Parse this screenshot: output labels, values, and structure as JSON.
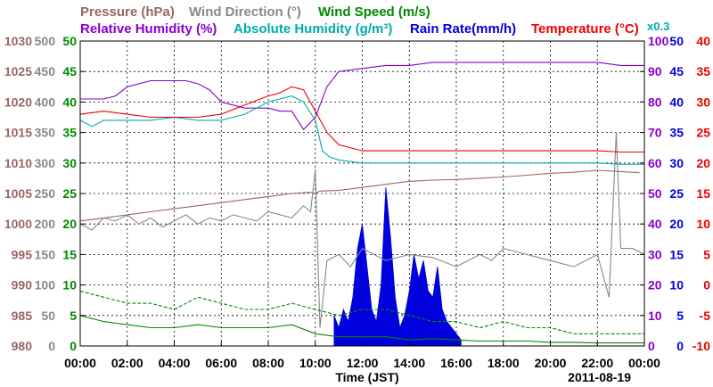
{
  "chart_data": {
    "type": "line",
    "date_label": "2011-08-19",
    "xlabel": "Time (JST)",
    "x_ticks": [
      "00:00",
      "02:00",
      "04:00",
      "06:00",
      "08:00",
      "10:00",
      "12:00",
      "14:00",
      "16:00",
      "18:00",
      "20:00",
      "22:00",
      "00:00"
    ],
    "xlim": [
      0,
      24
    ],
    "grid": true,
    "legend_placement": "top",
    "legend": [
      {
        "key": "pressure",
        "label": "Pressure (hPa)",
        "color": "#996666"
      },
      {
        "key": "wind_direction",
        "label": "Wind Direction (°)",
        "color": "#888888"
      },
      {
        "key": "wind_speed",
        "label": "Wind Speed (m/s)",
        "color": "#008800"
      },
      {
        "key": "relative_humidity",
        "label": "Relative Humidity (%)",
        "color": "#8800cc"
      },
      {
        "key": "absolute_humidity",
        "label": "Absolute Humidity (g/m³)",
        "color": "#00aaaa"
      },
      {
        "key": "rain_rate",
        "label": "Rain Rate(mm/h)",
        "color": "#0000dd"
      },
      {
        "key": "temperature",
        "label": "Temperature (°C)",
        "color": "#ee0000"
      }
    ],
    "rain_scale_note": "x0.3",
    "axes": {
      "pressure": {
        "ticks": [
          "1030",
          "1025",
          "1020",
          "1015",
          "1010",
          "1005",
          "1000",
          "995",
          "990",
          "985",
          "980"
        ],
        "range": [
          980,
          1030
        ],
        "color": "#996666"
      },
      "wind_direction": {
        "ticks": [
          "500",
          "450",
          "400",
          "350",
          "300",
          "250",
          "200",
          "150",
          "100",
          "50",
          "0"
        ],
        "range": [
          0,
          500
        ],
        "color": "#888888"
      },
      "wind_speed": {
        "ticks": [
          "50",
          "45",
          "40",
          "35",
          "30",
          "25",
          "20",
          "15",
          "10",
          "5",
          "0"
        ],
        "range": [
          0,
          50
        ],
        "color": "#008800"
      },
      "relative_humidity": {
        "ticks": [
          "100",
          "90",
          "80",
          "70",
          "60",
          "50",
          "40",
          "30",
          "20",
          "10",
          "0"
        ],
        "range": [
          0,
          100
        ],
        "color": "#8800cc"
      },
      "rain_rate": {
        "ticks": [
          "50",
          "45",
          "40",
          "35",
          "30",
          "25",
          "20",
          "15",
          "10",
          "5",
          "0"
        ],
        "range": [
          0,
          50
        ],
        "color": "#0000dd"
      },
      "temperature": {
        "ticks": [
          "40",
          "35",
          "30",
          "25",
          "20",
          "15",
          "10",
          "5",
          "0",
          "-5",
          "-10"
        ],
        "range": [
          -10,
          40
        ],
        "color": "#ee0000"
      }
    },
    "series": [
      {
        "key": "pressure",
        "unit_axis": "pressure",
        "x": [
          0,
          1,
          2,
          3,
          4,
          5,
          6,
          7,
          8,
          9,
          9.8,
          10.0,
          10.2,
          11,
          12,
          13,
          14,
          15,
          16,
          17,
          18,
          19,
          20,
          21,
          22,
          23,
          23.8
        ],
        "y": [
          1000.5,
          1001,
          1001.5,
          1002,
          1002.5,
          1003,
          1003.5,
          1004,
          1004.5,
          1005,
          1005.2,
          1005,
          1005.4,
          1005.5,
          1006,
          1006.5,
          1007,
          1007.2,
          1007.3,
          1007.5,
          1007.7,
          1008,
          1008.3,
          1008.5,
          1008.8,
          1008.6,
          1008.4
        ]
      },
      {
        "key": "wind_direction",
        "unit_axis": "wind_direction",
        "x": [
          0,
          0.5,
          1,
          1.5,
          2,
          2.5,
          3,
          3.5,
          4,
          4.5,
          5,
          5.5,
          6,
          6.5,
          7,
          7.5,
          8,
          8.5,
          9,
          9.5,
          9.8,
          10.0,
          10.2,
          10.5,
          11,
          11.5,
          12,
          13,
          14,
          15,
          16,
          17,
          17.5,
          18,
          19,
          20,
          21,
          22,
          22.5,
          22.8,
          23,
          23.5,
          24
        ],
        "y": [
          200,
          190,
          210,
          205,
          215,
          200,
          210,
          195,
          205,
          215,
          200,
          210,
          205,
          215,
          210,
          205,
          220,
          215,
          210,
          230,
          220,
          290,
          30,
          140,
          150,
          130,
          160,
          140,
          150,
          145,
          130,
          150,
          140,
          160,
          150,
          140,
          130,
          150,
          80,
          350,
          160,
          160,
          150
        ]
      },
      {
        "key": "wind_speed_max",
        "unit_axis": "wind_speed",
        "dashed": true,
        "x": [
          0,
          1,
          2,
          3,
          4,
          5,
          6,
          7,
          8,
          9,
          10,
          11,
          12,
          13,
          14,
          15,
          16,
          17,
          18,
          19,
          20,
          21,
          22,
          23,
          24
        ],
        "y": [
          9,
          8,
          7,
          7,
          6,
          8,
          7,
          6,
          6,
          7,
          6,
          5,
          6,
          6,
          5,
          4,
          4,
          3,
          4,
          3,
          3,
          2,
          2,
          2,
          2
        ]
      },
      {
        "key": "wind_speed",
        "unit_axis": "wind_speed",
        "x": [
          0,
          1,
          2,
          3,
          4,
          5,
          6,
          7,
          8,
          9,
          10,
          11,
          12,
          13,
          14,
          15,
          16,
          17,
          18,
          19,
          20,
          21,
          22,
          23,
          24
        ],
        "y": [
          5,
          4,
          3.5,
          3,
          3,
          3.5,
          3,
          3,
          3,
          3.5,
          2,
          1.5,
          1.5,
          1.5,
          1,
          1.2,
          1,
          0.8,
          0.8,
          0.8,
          0.6,
          0.6,
          0.5,
          0.5,
          0.5
        ]
      },
      {
        "key": "relative_humidity",
        "unit_axis": "relative_humidity",
        "x": [
          0,
          0.5,
          1,
          1.5,
          2,
          3,
          4,
          4.5,
          5,
          5.5,
          6,
          7,
          8,
          8.5,
          9,
          9.5,
          10,
          10.5,
          11,
          12,
          13,
          14,
          15,
          16,
          17,
          18,
          19,
          20,
          21,
          22,
          23,
          24
        ],
        "y": [
          81,
          81,
          81,
          82,
          85,
          87,
          87,
          87,
          86,
          84,
          80,
          78,
          78,
          77,
          77,
          71,
          75,
          85,
          90,
          91,
          92,
          92,
          93,
          93,
          93,
          93,
          93,
          93,
          93,
          93,
          92,
          92
        ]
      },
      {
        "key": "absolute_humidity",
        "unit_axis": "temperature",
        "x": [
          0,
          0.5,
          1,
          2,
          3,
          4,
          5,
          6,
          7,
          8,
          9,
          9.5,
          10,
          10.3,
          10.6,
          11,
          12,
          13,
          14,
          15,
          16,
          17,
          18,
          19,
          20,
          21,
          22,
          23,
          24
        ],
        "y": [
          27,
          26,
          27,
          27,
          27,
          27.5,
          27,
          27,
          28,
          30,
          31,
          30,
          27,
          22,
          21,
          20.5,
          20,
          20,
          20,
          20,
          20,
          20,
          20,
          20,
          20,
          20,
          20,
          19.8,
          19.8
        ]
      },
      {
        "key": "temperature",
        "unit_axis": "temperature",
        "x": [
          0,
          1,
          2,
          3,
          4,
          5,
          6,
          7,
          8,
          8.5,
          9,
          9.5,
          10,
          10.5,
          11,
          12,
          13,
          14,
          15,
          16,
          17,
          18,
          19,
          20,
          21,
          22,
          23,
          24
        ],
        "y": [
          28,
          28.5,
          28,
          27.5,
          27.5,
          27.5,
          28,
          29.5,
          31,
          31.5,
          32.5,
          32,
          28.5,
          25,
          23,
          22,
          22,
          22,
          22,
          22,
          22,
          22,
          22,
          22,
          22,
          22,
          21.8,
          21.8
        ]
      }
    ],
    "rain_bars": {
      "unit_axis": "wind_speed",
      "x": [
        10.8,
        11.0,
        11.2,
        11.4,
        11.6,
        11.8,
        12.0,
        12.2,
        12.4,
        12.6,
        12.8,
        13.0,
        13.2,
        13.4,
        13.6,
        13.8,
        14.0,
        14.2,
        14.4,
        14.6,
        14.8,
        15.0,
        15.2,
        15.4,
        15.6,
        15.8,
        16.0,
        16.2
      ],
      "y": [
        5,
        3,
        6,
        4,
        8,
        16,
        20,
        13,
        6,
        4,
        10,
        26,
        18,
        8,
        3,
        5,
        9,
        15,
        11,
        14,
        9,
        8,
        13,
        6,
        4,
        3,
        2,
        1
      ]
    }
  }
}
